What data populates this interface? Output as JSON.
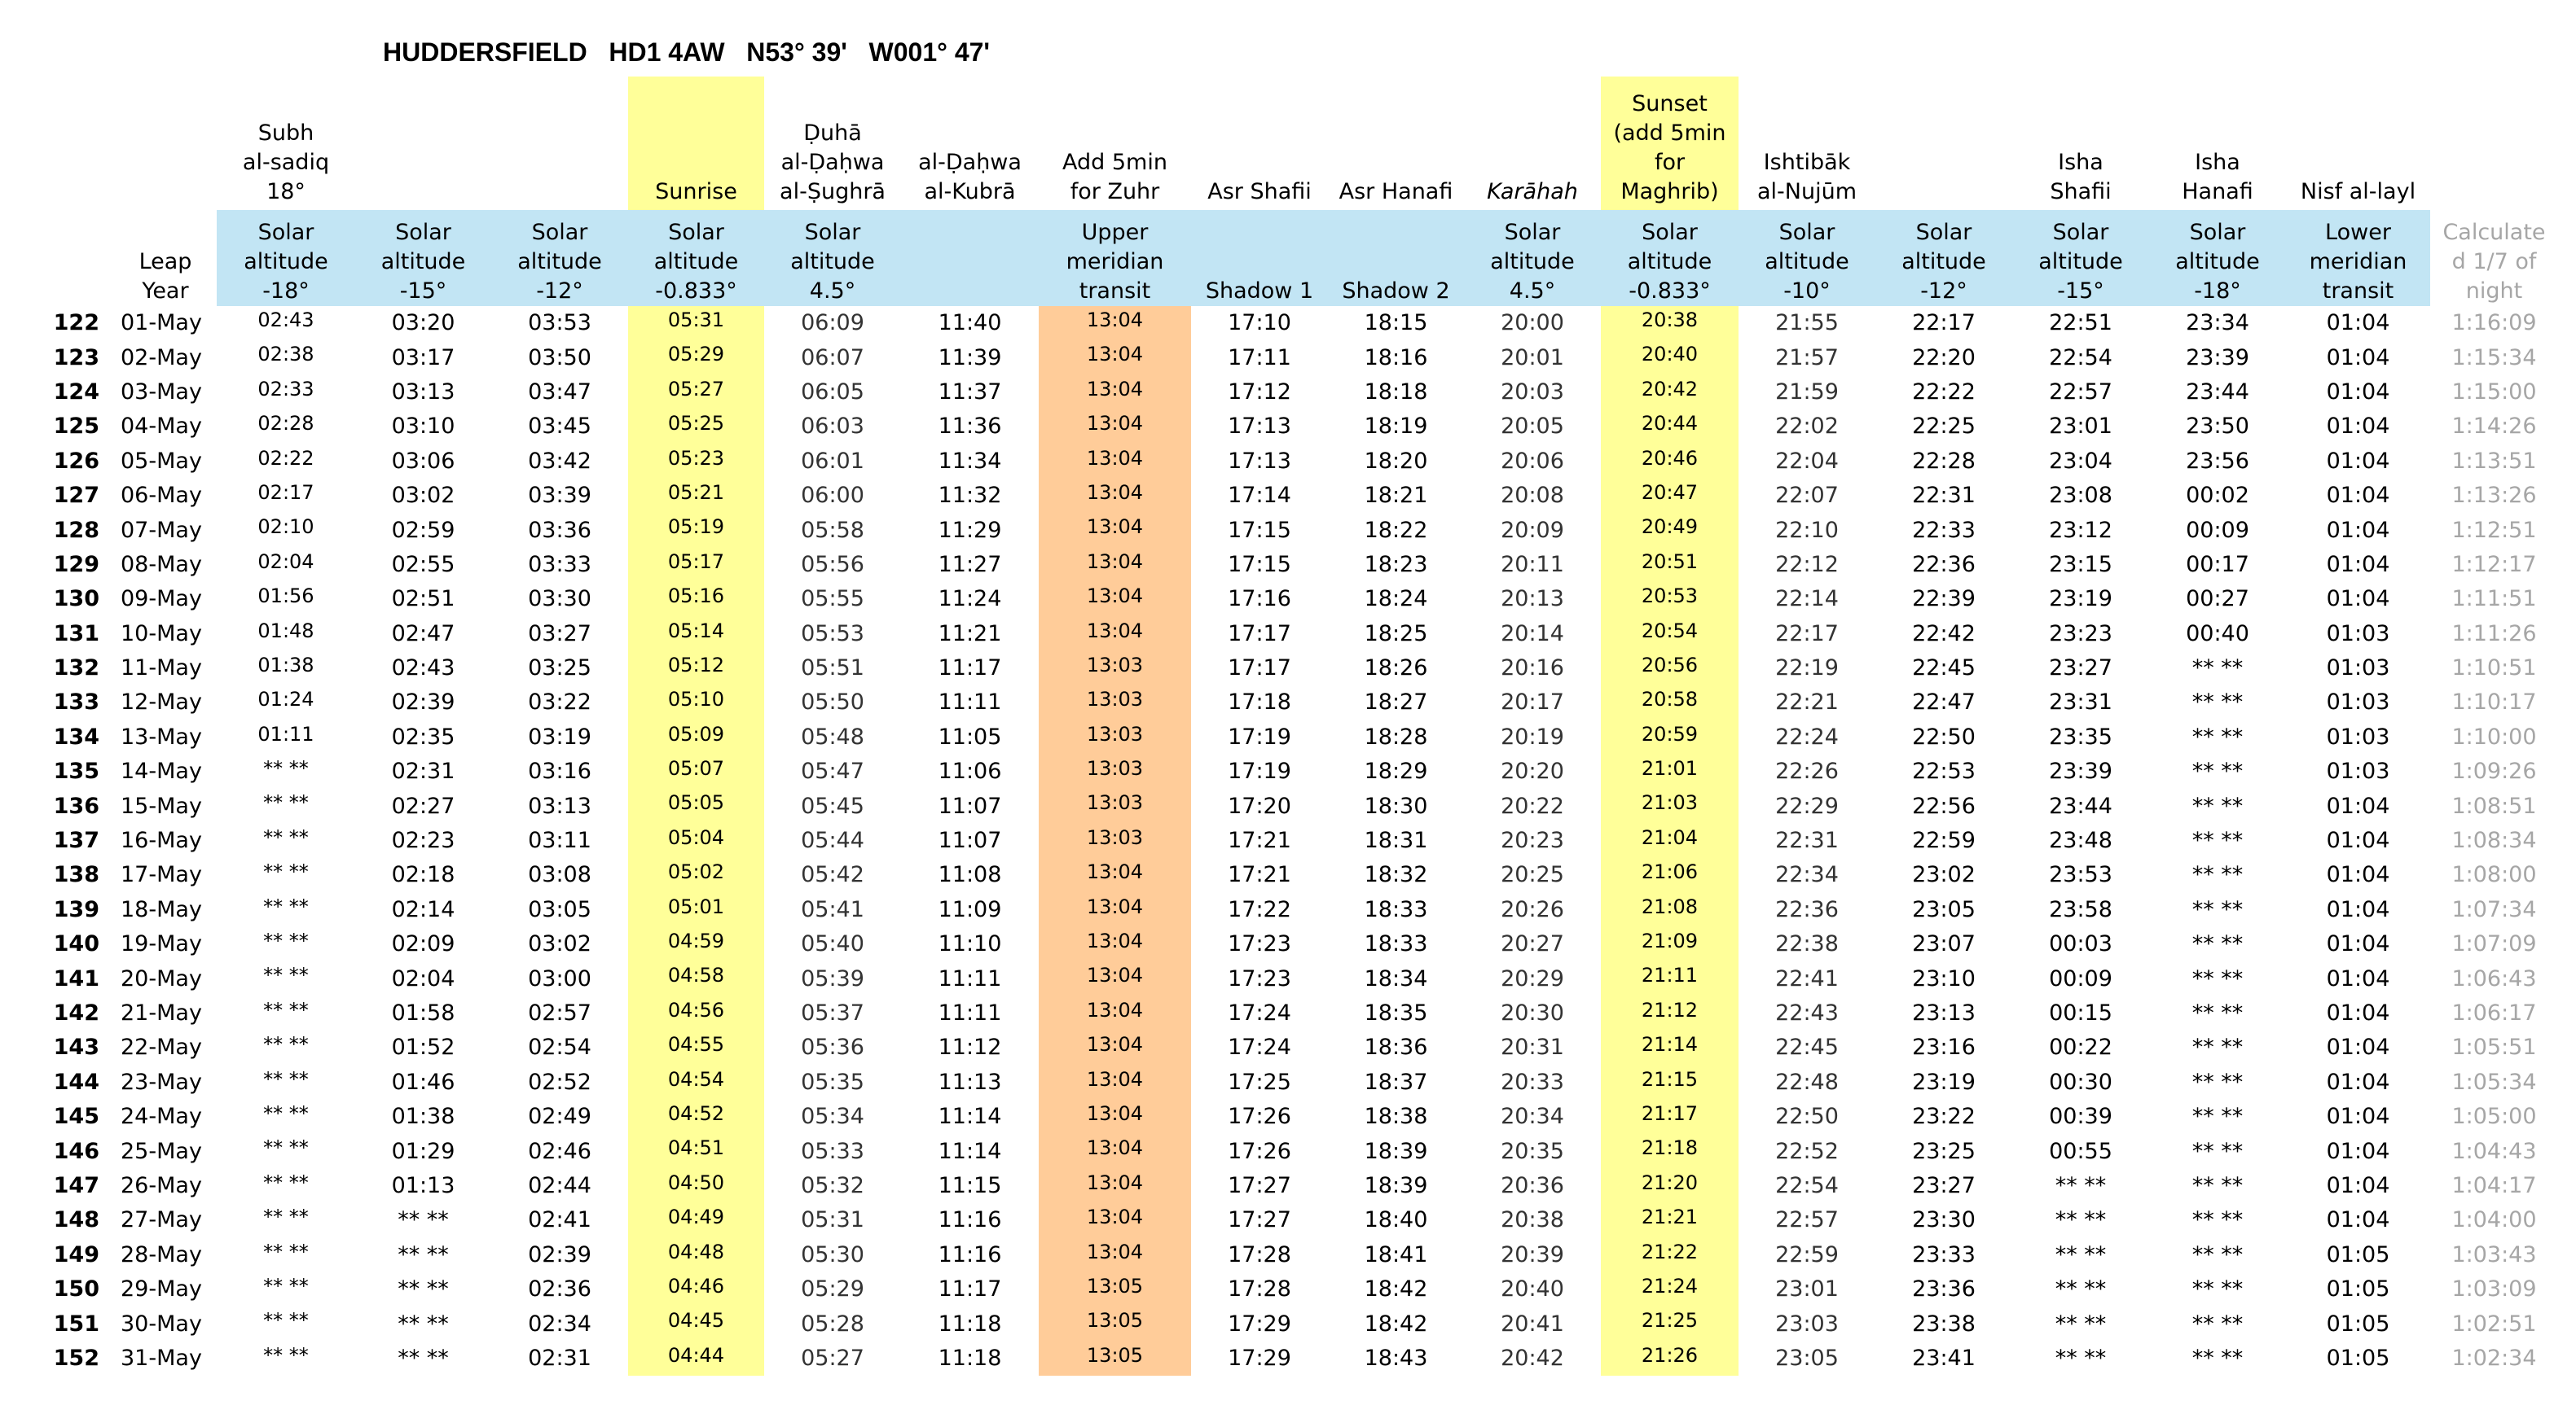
{
  "title": "HUDDERSFIELD   HD1 4AW   N53° 39'   W001° 47'",
  "colors": {
    "sunrise_sunset_highlight": "#ffff99",
    "zuhr_highlight": "#ffcc99",
    "header_band": "#c2e5f4",
    "calculated_text": "#a6a6a6"
  },
  "columns": [
    {
      "key": "day",
      "top": "",
      "sub": ""
    },
    {
      "key": "date",
      "top": "",
      "sub": "Leap\nYear"
    },
    {
      "key": "subh",
      "top": "Subh\nal-sadiq\n18°",
      "sub": "Solar\naltitude\n-18°"
    },
    {
      "key": "alt15",
      "top": "",
      "sub": "Solar\naltitude\n-15°"
    },
    {
      "key": "alt12",
      "top": "",
      "sub": "Solar\naltitude\n-12°"
    },
    {
      "key": "sunrise",
      "top": "Sunrise",
      "sub": "Solar\naltitude\n-0.833°"
    },
    {
      "key": "duha",
      "top": "Ḍuhā\nal-Ḍaḥwa\nal-Ṣughrā",
      "sub": "Solar\naltitude\n4.5°"
    },
    {
      "key": "kubra",
      "top": "al-Ḍaḥwa\nal-Kubrā",
      "sub": ""
    },
    {
      "key": "zuhr",
      "top": "Add 5min\nfor Zuhr",
      "sub": "Upper\nmeridian\ntransit"
    },
    {
      "key": "asr_shafii",
      "top": "Asr Shafii",
      "sub": "Shadow 1"
    },
    {
      "key": "asr_hanafi",
      "top": "Asr Hanafi",
      "sub": "Shadow 2"
    },
    {
      "key": "karahah",
      "top": "Karāhah",
      "sub": "Solar\naltitude\n4.5°"
    },
    {
      "key": "sunset",
      "top": "Sunset\n(add 5min\nfor\nMaghrib)",
      "sub": "Solar\naltitude\n-0.833°"
    },
    {
      "key": "ishtibak",
      "top": "Ishtibāk\nal-Nujūm",
      "sub": "Solar\naltitude\n-10°"
    },
    {
      "key": "alt12e",
      "top": "",
      "sub": "Solar\naltitude\n-12°"
    },
    {
      "key": "isha_shafii",
      "top": "Isha\nShafii",
      "sub": "Solar\naltitude\n-15°"
    },
    {
      "key": "isha_hanafi",
      "top": "Isha\nHanafi",
      "sub": "Solar\naltitude\n-18°"
    },
    {
      "key": "nisf",
      "top": "Nisf al-layl",
      "sub": "Lower\nmeridian\ntransit"
    },
    {
      "key": "calc",
      "top": "",
      "sub": "Calculate\nd 1/7 of\nnight"
    }
  ],
  "rows": [
    [
      "122",
      "01-May",
      "02:43",
      "03:20",
      "03:53",
      "05:31",
      "06:09",
      "11:40",
      "13:04",
      "17:10",
      "18:15",
      "20:00",
      "20:38",
      "21:55",
      "22:17",
      "22:51",
      "23:34",
      "01:04",
      "1:16:09"
    ],
    [
      "123",
      "02-May",
      "02:38",
      "03:17",
      "03:50",
      "05:29",
      "06:07",
      "11:39",
      "13:04",
      "17:11",
      "18:16",
      "20:01",
      "20:40",
      "21:57",
      "22:20",
      "22:54",
      "23:39",
      "01:04",
      "1:15:34"
    ],
    [
      "124",
      "03-May",
      "02:33",
      "03:13",
      "03:47",
      "05:27",
      "06:05",
      "11:37",
      "13:04",
      "17:12",
      "18:18",
      "20:03",
      "20:42",
      "21:59",
      "22:22",
      "22:57",
      "23:44",
      "01:04",
      "1:15:00"
    ],
    [
      "125",
      "04-May",
      "02:28",
      "03:10",
      "03:45",
      "05:25",
      "06:03",
      "11:36",
      "13:04",
      "17:13",
      "18:19",
      "20:05",
      "20:44",
      "22:02",
      "22:25",
      "23:01",
      "23:50",
      "01:04",
      "1:14:26"
    ],
    [
      "126",
      "05-May",
      "02:22",
      "03:06",
      "03:42",
      "05:23",
      "06:01",
      "11:34",
      "13:04",
      "17:13",
      "18:20",
      "20:06",
      "20:46",
      "22:04",
      "22:28",
      "23:04",
      "23:56",
      "01:04",
      "1:13:51"
    ],
    [
      "127",
      "06-May",
      "02:17",
      "03:02",
      "03:39",
      "05:21",
      "06:00",
      "11:32",
      "13:04",
      "17:14",
      "18:21",
      "20:08",
      "20:47",
      "22:07",
      "22:31",
      "23:08",
      "00:02",
      "01:04",
      "1:13:26"
    ],
    [
      "128",
      "07-May",
      "02:10",
      "02:59",
      "03:36",
      "05:19",
      "05:58",
      "11:29",
      "13:04",
      "17:15",
      "18:22",
      "20:09",
      "20:49",
      "22:10",
      "22:33",
      "23:12",
      "00:09",
      "01:04",
      "1:12:51"
    ],
    [
      "129",
      "08-May",
      "02:04",
      "02:55",
      "03:33",
      "05:17",
      "05:56",
      "11:27",
      "13:04",
      "17:15",
      "18:23",
      "20:11",
      "20:51",
      "22:12",
      "22:36",
      "23:15",
      "00:17",
      "01:04",
      "1:12:17"
    ],
    [
      "130",
      "09-May",
      "01:56",
      "02:51",
      "03:30",
      "05:16",
      "05:55",
      "11:24",
      "13:04",
      "17:16",
      "18:24",
      "20:13",
      "20:53",
      "22:14",
      "22:39",
      "23:19",
      "00:27",
      "01:04",
      "1:11:51"
    ],
    [
      "131",
      "10-May",
      "01:48",
      "02:47",
      "03:27",
      "05:14",
      "05:53",
      "11:21",
      "13:04",
      "17:17",
      "18:25",
      "20:14",
      "20:54",
      "22:17",
      "22:42",
      "23:23",
      "00:40",
      "01:03",
      "1:11:26"
    ],
    [
      "132",
      "11-May",
      "01:38",
      "02:43",
      "03:25",
      "05:12",
      "05:51",
      "11:17",
      "13:03",
      "17:17",
      "18:26",
      "20:16",
      "20:56",
      "22:19",
      "22:45",
      "23:27",
      "** **",
      "01:03",
      "1:10:51"
    ],
    [
      "133",
      "12-May",
      "01:24",
      "02:39",
      "03:22",
      "05:10",
      "05:50",
      "11:11",
      "13:03",
      "17:18",
      "18:27",
      "20:17",
      "20:58",
      "22:21",
      "22:47",
      "23:31",
      "** **",
      "01:03",
      "1:10:17"
    ],
    [
      "134",
      "13-May",
      "01:11",
      "02:35",
      "03:19",
      "05:09",
      "05:48",
      "11:05",
      "13:03",
      "17:19",
      "18:28",
      "20:19",
      "20:59",
      "22:24",
      "22:50",
      "23:35",
      "** **",
      "01:03",
      "1:10:00"
    ],
    [
      "135",
      "14-May",
      "** **",
      "02:31",
      "03:16",
      "05:07",
      "05:47",
      "11:06",
      "13:03",
      "17:19",
      "18:29",
      "20:20",
      "21:01",
      "22:26",
      "22:53",
      "23:39",
      "** **",
      "01:03",
      "1:09:26"
    ],
    [
      "136",
      "15-May",
      "** **",
      "02:27",
      "03:13",
      "05:05",
      "05:45",
      "11:07",
      "13:03",
      "17:20",
      "18:30",
      "20:22",
      "21:03",
      "22:29",
      "22:56",
      "23:44",
      "** **",
      "01:04",
      "1:08:51"
    ],
    [
      "137",
      "16-May",
      "** **",
      "02:23",
      "03:11",
      "05:04",
      "05:44",
      "11:07",
      "13:03",
      "17:21",
      "18:31",
      "20:23",
      "21:04",
      "22:31",
      "22:59",
      "23:48",
      "** **",
      "01:04",
      "1:08:34"
    ],
    [
      "138",
      "17-May",
      "** **",
      "02:18",
      "03:08",
      "05:02",
      "05:42",
      "11:08",
      "13:04",
      "17:21",
      "18:32",
      "20:25",
      "21:06",
      "22:34",
      "23:02",
      "23:53",
      "** **",
      "01:04",
      "1:08:00"
    ],
    [
      "139",
      "18-May",
      "** **",
      "02:14",
      "03:05",
      "05:01",
      "05:41",
      "11:09",
      "13:04",
      "17:22",
      "18:33",
      "20:26",
      "21:08",
      "22:36",
      "23:05",
      "23:58",
      "** **",
      "01:04",
      "1:07:34"
    ],
    [
      "140",
      "19-May",
      "** **",
      "02:09",
      "03:02",
      "04:59",
      "05:40",
      "11:10",
      "13:04",
      "17:23",
      "18:33",
      "20:27",
      "21:09",
      "22:38",
      "23:07",
      "00:03",
      "** **",
      "01:04",
      "1:07:09"
    ],
    [
      "141",
      "20-May",
      "** **",
      "02:04",
      "03:00",
      "04:58",
      "05:39",
      "11:11",
      "13:04",
      "17:23",
      "18:34",
      "20:29",
      "21:11",
      "22:41",
      "23:10",
      "00:09",
      "** **",
      "01:04",
      "1:06:43"
    ],
    [
      "142",
      "21-May",
      "** **",
      "01:58",
      "02:57",
      "04:56",
      "05:37",
      "11:11",
      "13:04",
      "17:24",
      "18:35",
      "20:30",
      "21:12",
      "22:43",
      "23:13",
      "00:15",
      "** **",
      "01:04",
      "1:06:17"
    ],
    [
      "143",
      "22-May",
      "** **",
      "01:52",
      "02:54",
      "04:55",
      "05:36",
      "11:12",
      "13:04",
      "17:24",
      "18:36",
      "20:31",
      "21:14",
      "22:45",
      "23:16",
      "00:22",
      "** **",
      "01:04",
      "1:05:51"
    ],
    [
      "144",
      "23-May",
      "** **",
      "01:46",
      "02:52",
      "04:54",
      "05:35",
      "11:13",
      "13:04",
      "17:25",
      "18:37",
      "20:33",
      "21:15",
      "22:48",
      "23:19",
      "00:30",
      "** **",
      "01:04",
      "1:05:34"
    ],
    [
      "145",
      "24-May",
      "** **",
      "01:38",
      "02:49",
      "04:52",
      "05:34",
      "11:14",
      "13:04",
      "17:26",
      "18:38",
      "20:34",
      "21:17",
      "22:50",
      "23:22",
      "00:39",
      "** **",
      "01:04",
      "1:05:00"
    ],
    [
      "146",
      "25-May",
      "** **",
      "01:29",
      "02:46",
      "04:51",
      "05:33",
      "11:14",
      "13:04",
      "17:26",
      "18:39",
      "20:35",
      "21:18",
      "22:52",
      "23:25",
      "00:55",
      "** **",
      "01:04",
      "1:04:43"
    ],
    [
      "147",
      "26-May",
      "** **",
      "01:13",
      "02:44",
      "04:50",
      "05:32",
      "11:15",
      "13:04",
      "17:27",
      "18:39",
      "20:36",
      "21:20",
      "22:54",
      "23:27",
      "** **",
      "** **",
      "01:04",
      "1:04:17"
    ],
    [
      "148",
      "27-May",
      "** **",
      "** **",
      "02:41",
      "04:49",
      "05:31",
      "11:16",
      "13:04",
      "17:27",
      "18:40",
      "20:38",
      "21:21",
      "22:57",
      "23:30",
      "** **",
      "** **",
      "01:04",
      "1:04:00"
    ],
    [
      "149",
      "28-May",
      "** **",
      "** **",
      "02:39",
      "04:48",
      "05:30",
      "11:16",
      "13:04",
      "17:28",
      "18:41",
      "20:39",
      "21:22",
      "22:59",
      "23:33",
      "** **",
      "** **",
      "01:05",
      "1:03:43"
    ],
    [
      "150",
      "29-May",
      "** **",
      "** **",
      "02:36",
      "04:46",
      "05:29",
      "11:17",
      "13:05",
      "17:28",
      "18:42",
      "20:40",
      "21:24",
      "23:01",
      "23:36",
      "** **",
      "** **",
      "01:05",
      "1:03:09"
    ],
    [
      "151",
      "30-May",
      "** **",
      "** **",
      "02:34",
      "04:45",
      "05:28",
      "11:18",
      "13:05",
      "17:29",
      "18:42",
      "20:41",
      "21:25",
      "23:03",
      "23:38",
      "** **",
      "** **",
      "01:05",
      "1:02:51"
    ],
    [
      "152",
      "31-May",
      "** **",
      "** **",
      "02:31",
      "04:44",
      "05:27",
      "11:18",
      "13:05",
      "17:29",
      "18:43",
      "20:42",
      "21:26",
      "23:05",
      "23:41",
      "** **",
      "** **",
      "01:05",
      "1:02:34"
    ]
  ]
}
